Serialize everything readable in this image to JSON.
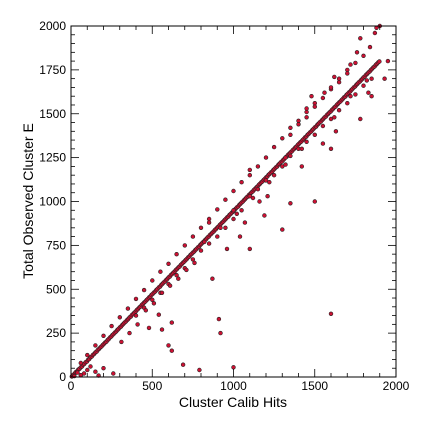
{
  "chart_data": {
    "type": "scatter",
    "title": "",
    "xlabel": "Cluster Calib Hits",
    "ylabel": "Total Observed Cluster E",
    "xlim": [
      0,
      2000
    ],
    "ylim": [
      0,
      2000
    ],
    "xticks": [
      "0",
      "500",
      "1000",
      "1500",
      "2000"
    ],
    "yticks": [
      "0",
      "250",
      "500",
      "750",
      "1000",
      "1250",
      "1500",
      "1750",
      "2000"
    ],
    "grid": false,
    "marker_fill": "#cc1133",
    "marker_edge": "#222222",
    "points": [
      [
        5,
        3
      ],
      [
        12,
        10
      ],
      [
        18,
        15
      ],
      [
        25,
        22
      ],
      [
        30,
        28
      ],
      [
        38,
        33
      ],
      [
        45,
        42
      ],
      [
        52,
        47
      ],
      [
        60,
        55
      ],
      [
        68,
        60
      ],
      [
        75,
        70
      ],
      [
        82,
        74
      ],
      [
        90,
        84
      ],
      [
        98,
        88
      ],
      [
        105,
        98
      ],
      [
        112,
        102
      ],
      [
        120,
        112
      ],
      [
        128,
        117
      ],
      [
        135,
        126
      ],
      [
        142,
        131
      ],
      [
        150,
        140
      ],
      [
        158,
        145
      ],
      [
        165,
        154
      ],
      [
        172,
        160
      ],
      [
        180,
        168
      ],
      [
        188,
        174
      ],
      [
        195,
        182
      ],
      [
        202,
        188
      ],
      [
        210,
        196
      ],
      [
        218,
        201
      ],
      [
        225,
        210
      ],
      [
        232,
        216
      ],
      [
        240,
        225
      ],
      [
        248,
        231
      ],
      [
        255,
        239
      ],
      [
        262,
        245
      ],
      [
        270,
        253
      ],
      [
        278,
        259
      ],
      [
        285,
        267
      ],
      [
        292,
        273
      ],
      [
        300,
        282
      ],
      [
        308,
        287
      ],
      [
        315,
        296
      ],
      [
        322,
        302
      ],
      [
        330,
        310
      ],
      [
        338,
        316
      ],
      [
        345,
        324
      ],
      [
        352,
        330
      ],
      [
        360,
        339
      ],
      [
        368,
        344
      ],
      [
        375,
        353
      ],
      [
        382,
        359
      ],
      [
        390,
        367
      ],
      [
        398,
        373
      ],
      [
        405,
        381
      ],
      [
        412,
        387
      ],
      [
        420,
        396
      ],
      [
        428,
        401
      ],
      [
        435,
        410
      ],
      [
        442,
        416
      ],
      [
        450,
        424
      ],
      [
        458,
        430
      ],
      [
        465,
        438
      ],
      [
        472,
        444
      ],
      [
        480,
        453
      ],
      [
        488,
        458
      ],
      [
        495,
        467
      ],
      [
        502,
        473
      ],
      [
        510,
        481
      ],
      [
        518,
        487
      ],
      [
        525,
        495
      ],
      [
        532,
        501
      ],
      [
        540,
        510
      ],
      [
        548,
        515
      ],
      [
        555,
        524
      ],
      [
        562,
        530
      ],
      [
        570,
        538
      ],
      [
        578,
        544
      ],
      [
        585,
        552
      ],
      [
        592,
        558
      ],
      [
        600,
        567
      ],
      [
        608,
        572
      ],
      [
        615,
        581
      ],
      [
        622,
        587
      ],
      [
        630,
        595
      ],
      [
        638,
        601
      ],
      [
        645,
        609
      ],
      [
        652,
        615
      ],
      [
        660,
        624
      ],
      [
        668,
        629
      ],
      [
        675,
        638
      ],
      [
        682,
        644
      ],
      [
        690,
        652
      ],
      [
        698,
        658
      ],
      [
        705,
        666
      ],
      [
        712,
        672
      ],
      [
        720,
        681
      ],
      [
        728,
        686
      ],
      [
        735,
        695
      ],
      [
        742,
        701
      ],
      [
        750,
        709
      ],
      [
        758,
        715
      ],
      [
        765,
        723
      ],
      [
        772,
        729
      ],
      [
        780,
        738
      ],
      [
        788,
        743
      ],
      [
        795,
        752
      ],
      [
        802,
        758
      ],
      [
        810,
        766
      ],
      [
        818,
        772
      ],
      [
        825,
        780
      ],
      [
        832,
        786
      ],
      [
        840,
        795
      ],
      [
        848,
        800
      ],
      [
        855,
        809
      ],
      [
        862,
        815
      ],
      [
        870,
        823
      ],
      [
        878,
        829
      ],
      [
        885,
        837
      ],
      [
        892,
        843
      ],
      [
        900,
        852
      ],
      [
        908,
        857
      ],
      [
        915,
        866
      ],
      [
        922,
        872
      ],
      [
        930,
        880
      ],
      [
        938,
        886
      ],
      [
        945,
        894
      ],
      [
        952,
        900
      ],
      [
        960,
        909
      ],
      [
        968,
        914
      ],
      [
        975,
        923
      ],
      [
        982,
        929
      ],
      [
        990,
        937
      ],
      [
        998,
        943
      ],
      [
        1005,
        951
      ],
      [
        1012,
        957
      ],
      [
        1020,
        966
      ],
      [
        1028,
        971
      ],
      [
        1035,
        980
      ],
      [
        1042,
        986
      ],
      [
        1050,
        994
      ],
      [
        1058,
        1000
      ],
      [
        1065,
        1008
      ],
      [
        1072,
        1014
      ],
      [
        1080,
        1023
      ],
      [
        1088,
        1028
      ],
      [
        1095,
        1037
      ],
      [
        1102,
        1043
      ],
      [
        1110,
        1051
      ],
      [
        1118,
        1057
      ],
      [
        1125,
        1065
      ],
      [
        1132,
        1071
      ],
      [
        1140,
        1080
      ],
      [
        1148,
        1085
      ],
      [
        1155,
        1094
      ],
      [
        1162,
        1100
      ],
      [
        1170,
        1108
      ],
      [
        1178,
        1114
      ],
      [
        1185,
        1122
      ],
      [
        1192,
        1128
      ],
      [
        1200,
        1137
      ],
      [
        1208,
        1142
      ],
      [
        1215,
        1151
      ],
      [
        1222,
        1157
      ],
      [
        1230,
        1165
      ],
      [
        1238,
        1171
      ],
      [
        1245,
        1179
      ],
      [
        1252,
        1185
      ],
      [
        1260,
        1194
      ],
      [
        1268,
        1199
      ],
      [
        1275,
        1208
      ],
      [
        1282,
        1214
      ],
      [
        1290,
        1222
      ],
      [
        1298,
        1228
      ],
      [
        1305,
        1236
      ],
      [
        1312,
        1242
      ],
      [
        1320,
        1251
      ],
      [
        1328,
        1256
      ],
      [
        1335,
        1265
      ],
      [
        1342,
        1271
      ],
      [
        1350,
        1279
      ],
      [
        1358,
        1285
      ],
      [
        1365,
        1293
      ],
      [
        1372,
        1299
      ],
      [
        1380,
        1308
      ],
      [
        1388,
        1313
      ],
      [
        1395,
        1322
      ],
      [
        1402,
        1328
      ],
      [
        1410,
        1336
      ],
      [
        1418,
        1342
      ],
      [
        1425,
        1350
      ],
      [
        1432,
        1356
      ],
      [
        1440,
        1365
      ],
      [
        1448,
        1370
      ],
      [
        1455,
        1379
      ],
      [
        1462,
        1385
      ],
      [
        1470,
        1393
      ],
      [
        1478,
        1399
      ],
      [
        1485,
        1407
      ],
      [
        1492,
        1413
      ],
      [
        1500,
        1422
      ],
      [
        1508,
        1427
      ],
      [
        1515,
        1436
      ],
      [
        1522,
        1442
      ],
      [
        1530,
        1450
      ],
      [
        1538,
        1456
      ],
      [
        1545,
        1464
      ],
      [
        1552,
        1470
      ],
      [
        1560,
        1479
      ],
      [
        1568,
        1484
      ],
      [
        1575,
        1493
      ],
      [
        1582,
        1499
      ],
      [
        1590,
        1507
      ],
      [
        1598,
        1513
      ],
      [
        1605,
        1521
      ],
      [
        1612,
        1527
      ],
      [
        1620,
        1536
      ],
      [
        1628,
        1541
      ],
      [
        1635,
        1550
      ],
      [
        1642,
        1556
      ],
      [
        1650,
        1564
      ],
      [
        1658,
        1570
      ],
      [
        1665,
        1578
      ],
      [
        1672,
        1584
      ],
      [
        1680,
        1593
      ],
      [
        1688,
        1598
      ],
      [
        1695,
        1607
      ],
      [
        1702,
        1613
      ],
      [
        1710,
        1621
      ],
      [
        1718,
        1627
      ],
      [
        1725,
        1635
      ],
      [
        1732,
        1641
      ],
      [
        1740,
        1650
      ],
      [
        1748,
        1655
      ],
      [
        1755,
        1664
      ],
      [
        1762,
        1670
      ],
      [
        1770,
        1678
      ],
      [
        1778,
        1684
      ],
      [
        1785,
        1692
      ],
      [
        1792,
        1698
      ],
      [
        1800,
        1707
      ],
      [
        1808,
        1712
      ],
      [
        1815,
        1721
      ],
      [
        1822,
        1727
      ],
      [
        1830,
        1735
      ],
      [
        1838,
        1741
      ],
      [
        1845,
        1749
      ],
      [
        1852,
        1755
      ],
      [
        1860,
        1764
      ],
      [
        1868,
        1769
      ],
      [
        1875,
        1778
      ],
      [
        1882,
        1784
      ],
      [
        1890,
        1792
      ],
      [
        1898,
        1798
      ],
      [
        1880,
        1990
      ],
      [
        1900,
        2000
      ],
      [
        1780,
        1930
      ],
      [
        1870,
        1960
      ],
      [
        1840,
        1880
      ],
      [
        1760,
        1850
      ],
      [
        1720,
        1780
      ],
      [
        1650,
        1700
      ],
      [
        1600,
        1640
      ],
      [
        1560,
        1620
      ],
      [
        1500,
        1560
      ],
      [
        1450,
        1510
      ],
      [
        1400,
        1460
      ],
      [
        1350,
        1420
      ],
      [
        1300,
        1360
      ],
      [
        1250,
        1310
      ],
      [
        1200,
        1250
      ],
      [
        1150,
        1200
      ],
      [
        1100,
        1150
      ],
      [
        1050,
        1110
      ],
      [
        1000,
        1060
      ],
      [
        950,
        1010
      ],
      [
        900,
        955
      ],
      [
        850,
        900
      ],
      [
        800,
        850
      ],
      [
        750,
        800
      ],
      [
        700,
        750
      ],
      [
        650,
        700
      ],
      [
        600,
        645
      ],
      [
        550,
        600
      ],
      [
        500,
        550
      ],
      [
        450,
        495
      ],
      [
        400,
        445
      ],
      [
        350,
        390
      ],
      [
        300,
        340
      ],
      [
        250,
        290
      ],
      [
        200,
        235
      ],
      [
        150,
        180
      ],
      [
        100,
        125
      ],
      [
        60,
        80
      ],
      [
        1100,
        1030
      ],
      [
        1150,
        1070
      ],
      [
        1200,
        1120
      ],
      [
        1250,
        1150
      ],
      [
        1300,
        1200
      ],
      [
        1350,
        1260
      ],
      [
        1400,
        1300
      ],
      [
        1450,
        1340
      ],
      [
        1500,
        1380
      ],
      [
        1550,
        1430
      ],
      [
        1600,
        1470
      ],
      [
        1650,
        1520
      ],
      [
        1700,
        1560
      ],
      [
        1750,
        1610
      ],
      [
        1800,
        1660
      ],
      [
        1850,
        1700
      ],
      [
        900,
        800
      ],
      [
        950,
        850
      ],
      [
        1000,
        900
      ],
      [
        1050,
        950
      ],
      [
        800,
        720
      ],
      [
        850,
        760
      ],
      [
        700,
        620
      ],
      [
        750,
        670
      ],
      [
        600,
        530
      ],
      [
        650,
        580
      ],
      [
        500,
        440
      ],
      [
        550,
        480
      ],
      [
        400,
        350
      ],
      [
        450,
        395
      ],
      [
        1600,
        360
      ],
      [
        1300,
        840
      ],
      [
        1500,
        1000
      ],
      [
        1600,
        1300
      ],
      [
        1630,
        1400
      ],
      [
        1550,
        1330
      ],
      [
        1830,
        1620
      ],
      [
        1780,
        1470
      ],
      [
        1950,
        1800
      ],
      [
        1930,
        1700
      ],
      [
        1850,
        1600
      ],
      [
        920,
        250
      ],
      [
        1000,
        55
      ],
      [
        600,
        180
      ],
      [
        560,
        270
      ],
      [
        620,
        310
      ],
      [
        480,
        280
      ],
      [
        540,
        355
      ],
      [
        1100,
        730
      ],
      [
        870,
        560
      ],
      [
        1070,
        880
      ],
      [
        1350,
        990
      ],
      [
        960,
        730
      ],
      [
        1040,
        800
      ],
      [
        1190,
        920
      ],
      [
        1160,
        1000
      ],
      [
        1210,
        1030
      ],
      [
        1420,
        1200
      ],
      [
        1620,
        1710
      ],
      [
        1450,
        1530
      ],
      [
        910,
        330
      ],
      [
        690,
        70
      ],
      [
        790,
        40
      ],
      [
        620,
        150
      ],
      [
        1000,
        950
      ],
      [
        850,
        880
      ],
      [
        1100,
        1180
      ],
      [
        1700,
        1750
      ],
      [
        1480,
        1600
      ],
      [
        1320,
        1250
      ],
      [
        20,
        5
      ],
      [
        40,
        25
      ],
      [
        60,
        10
      ],
      [
        80,
        20
      ],
      [
        100,
        40
      ],
      [
        120,
        60
      ],
      [
        150,
        30
      ],
      [
        170,
        8
      ],
      [
        200,
        50
      ],
      [
        260,
        20
      ],
      [
        310,
        200
      ],
      [
        360,
        250
      ],
      [
        410,
        300
      ],
      [
        460,
        380
      ],
      [
        510,
        420
      ],
      [
        560,
        480
      ],
      [
        610,
        520
      ],
      [
        660,
        560
      ],
      [
        710,
        610
      ],
      [
        760,
        650
      ],
      [
        1350,
        1380
      ],
      [
        1400,
        1440
      ],
      [
        1450,
        1480
      ],
      [
        1500,
        1540
      ],
      [
        1550,
        1590
      ],
      [
        1600,
        1650
      ],
      [
        1650,
        1680
      ],
      [
        1700,
        1730
      ],
      [
        1750,
        1790
      ],
      [
        1800,
        1830
      ],
      [
        1620,
        1480
      ],
      [
        1720,
        1600
      ],
      [
        1820,
        1690
      ],
      [
        1420,
        1300
      ],
      [
        1320,
        1210
      ],
      [
        1220,
        1110
      ],
      [
        1120,
        1020
      ],
      [
        1020,
        930
      ],
      [
        920,
        850
      ],
      [
        820,
        770
      ]
    ]
  }
}
